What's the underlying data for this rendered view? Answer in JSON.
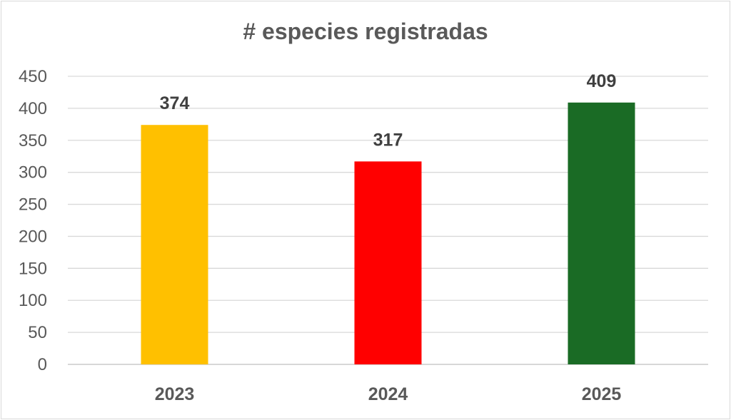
{
  "chart_data": {
    "type": "bar",
    "title": "# especies registradas",
    "categories": [
      "2023",
      "2024",
      "2025"
    ],
    "values": [
      374,
      317,
      409
    ],
    "colors": [
      "#ffc000",
      "#ff0000",
      "#1a6b25"
    ],
    "ylim": [
      0,
      450
    ],
    "yticks": [
      0,
      50,
      100,
      150,
      200,
      250,
      300,
      350,
      400,
      450
    ],
    "grid": true,
    "data_labels": true,
    "legend": "none"
  }
}
